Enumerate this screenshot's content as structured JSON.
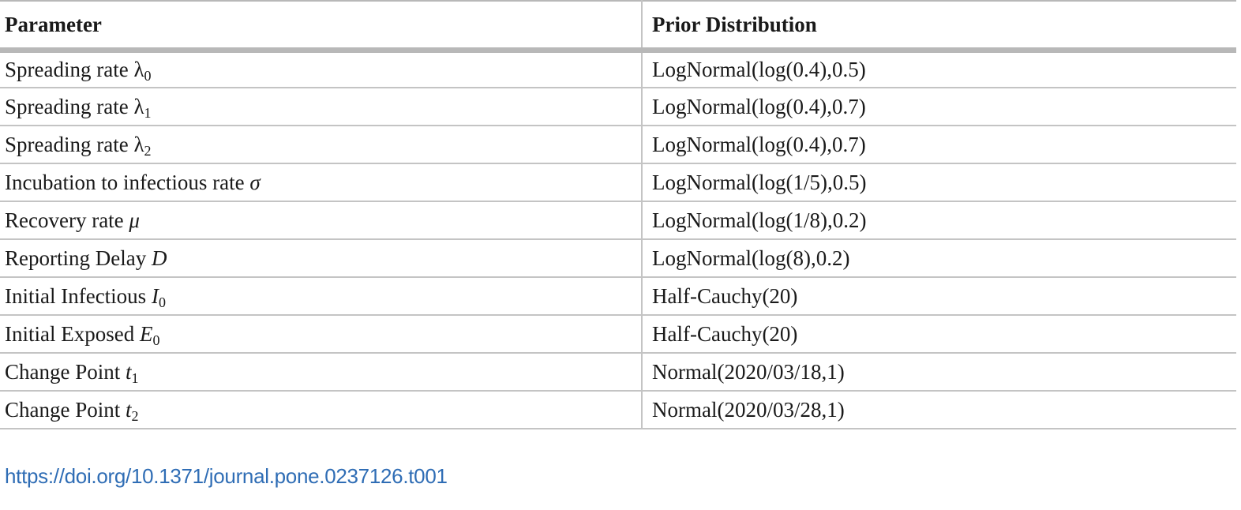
{
  "table": {
    "headers": [
      "Parameter",
      "Prior Distribution"
    ],
    "rows": [
      {
        "label": "Spreading rate ",
        "symbol": "λ",
        "symbol_style": "upright",
        "subscript": "0",
        "prior": "LogNormal(log(0.4),0.5)"
      },
      {
        "label": "Spreading rate ",
        "symbol": "λ",
        "symbol_style": "upright",
        "subscript": "1",
        "prior": "LogNormal(log(0.4),0.7)"
      },
      {
        "label": "Spreading rate ",
        "symbol": "λ",
        "symbol_style": "upright",
        "subscript": "2",
        "prior": "LogNormal(log(0.4),0.7)"
      },
      {
        "label": "Incubation to infectious rate ",
        "symbol": "σ",
        "symbol_style": "italic",
        "subscript": "",
        "prior": "LogNormal(log(1/5),0.5)"
      },
      {
        "label": "Recovery rate ",
        "symbol": "μ",
        "symbol_style": "italic",
        "subscript": "",
        "prior": "LogNormal(log(1/8),0.2)"
      },
      {
        "label": "Reporting Delay ",
        "symbol": "D",
        "symbol_style": "italic",
        "subscript": "",
        "prior": "LogNormal(log(8),0.2)"
      },
      {
        "label": "Initial Infectious ",
        "symbol": "I",
        "symbol_style": "italic",
        "subscript": "0",
        "prior": "Half-Cauchy(20)"
      },
      {
        "label": "Initial Exposed ",
        "symbol": "E",
        "symbol_style": "italic",
        "subscript": "0",
        "prior": "Half-Cauchy(20)"
      },
      {
        "label": "Change Point ",
        "symbol": "t",
        "symbol_style": "italic",
        "subscript": "1",
        "prior": "Normal(2020/03/18,1)"
      },
      {
        "label": "Change Point ",
        "symbol": "t",
        "symbol_style": "italic",
        "subscript": "2",
        "prior": "Normal(2020/03/28,1)"
      }
    ]
  },
  "doi_link": "https://doi.org/10.1371/journal.pone.0237126.t001"
}
